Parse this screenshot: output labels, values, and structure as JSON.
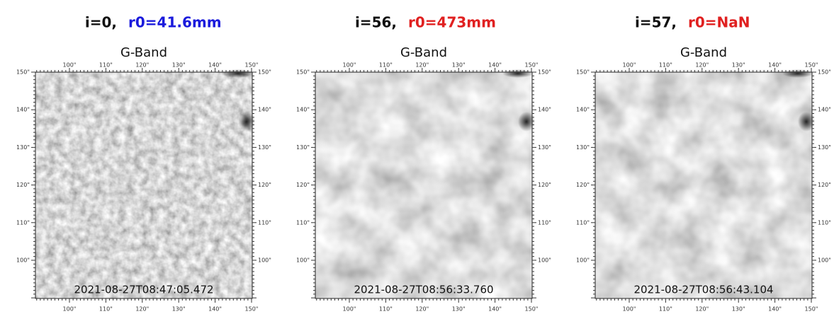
{
  "panels": [
    {
      "index_label": "i=0,",
      "r0_label": "r0=41.6mm",
      "r0_color": "#1a1adc",
      "title": "G-Band",
      "timestamp": "2021-08-27T08:47:05.472",
      "xticks": [
        "100\"",
        "110\"",
        "120\"",
        "130\"",
        "140\"",
        "150\""
      ],
      "yticks": [
        "150\"",
        "140\"",
        "130\"",
        "120\"",
        "110\"",
        "100\""
      ]
    },
    {
      "index_label": "i=56,",
      "r0_label": "r0=473mm",
      "r0_color": "#e02020",
      "title": "G-Band",
      "timestamp": "2021-08-27T08:56:33.760",
      "xticks": [
        "100\"",
        "110\"",
        "120\"",
        "130\"",
        "140\"",
        "150\""
      ],
      "yticks": [
        "150\"",
        "140\"",
        "130\"",
        "120\"",
        "110\"",
        "100\""
      ]
    },
    {
      "index_label": "i=57,",
      "r0_label": "r0=NaN",
      "r0_color": "#e02020",
      "title": "G-Band",
      "timestamp": "2021-08-27T08:56:43.104",
      "xticks": [
        "100\"",
        "110\"",
        "120\"",
        "130\"",
        "140\"",
        "150\""
      ],
      "yticks": [
        "150\"",
        "140\"",
        "130\"",
        "120\"",
        "110\"",
        "100\""
      ]
    }
  ]
}
